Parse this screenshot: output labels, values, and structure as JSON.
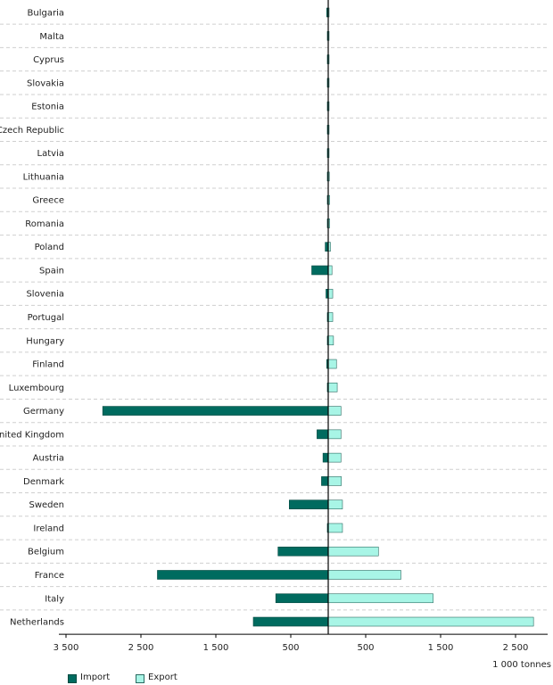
{
  "chart_data": {
    "type": "bar",
    "orientation": "horizontal-diverging",
    "unit_label": "1 000 tonnes",
    "categories": [
      "Bulgaria",
      "Malta",
      "Cyprus",
      "Slovakia",
      "Estonia",
      "Czech Republic",
      "Latvia",
      "Lithuania",
      "Greece",
      "Romania",
      "Poland",
      "Spain",
      "Slovenia",
      "Portugal",
      "Hungary",
      "Finland",
      "Luxembourg",
      "Germany",
      "United Kingdom",
      "Austria",
      "Denmark",
      "Sweden",
      "Ireland",
      "Belgium",
      "France",
      "Italy",
      "Netherlands"
    ],
    "series": [
      {
        "name": "Import",
        "color": "#006b5f",
        "values": [
          20,
          5,
          5,
          5,
          10,
          10,
          5,
          5,
          5,
          5,
          40,
          220,
          30,
          10,
          10,
          20,
          10,
          3010,
          150,
          70,
          90,
          520,
          5,
          670,
          2280,
          700,
          1000
        ]
      },
      {
        "name": "Export",
        "color": "#a8f5e6",
        "values": [
          5,
          5,
          5,
          5,
          5,
          5,
          10,
          15,
          20,
          20,
          30,
          50,
          60,
          60,
          70,
          110,
          120,
          170,
          170,
          170,
          175,
          190,
          190,
          670,
          970,
          1400,
          2740
        ]
      }
    ],
    "x_tick_labels": [
      "3 500",
      "2 500",
      "1 500",
      "500",
      "500",
      "1 500",
      "2 500"
    ],
    "xlim": [
      -3500,
      3000
    ],
    "grid": true,
    "legend_position": "bottom-left"
  },
  "legend": {
    "import_label": "Import",
    "export_label": "Export"
  }
}
